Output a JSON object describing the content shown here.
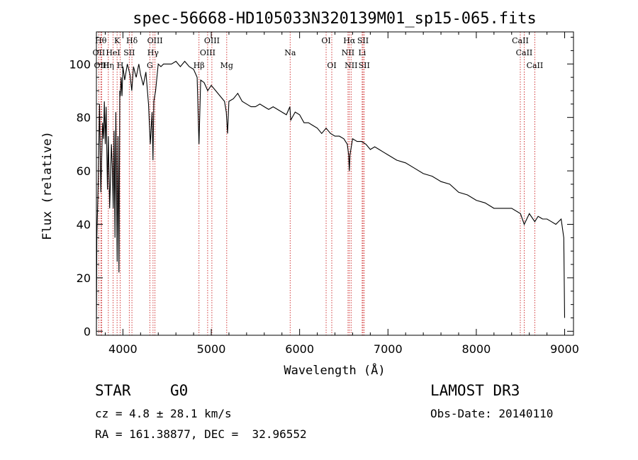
{
  "chart_data": {
    "type": "line",
    "title": "spec-56668-HD105033N320139M01_sp15-065.fits",
    "xlabel": "Wavelength (Å)",
    "ylabel": "Flux (relative)",
    "xlim": [
      3700,
      9100
    ],
    "ylim": [
      -1.5,
      112
    ],
    "x_ticks": [
      4000,
      5000,
      6000,
      7000,
      8000,
      9000
    ],
    "y_ticks": [
      0,
      20,
      40,
      60,
      80,
      100
    ],
    "grid": false,
    "series": [
      {
        "name": "flux",
        "x": [
          3700,
          3705,
          3720,
          3735,
          3750,
          3770,
          3780,
          3790,
          3800,
          3810,
          3825,
          3835,
          3850,
          3870,
          3880,
          3890,
          3900,
          3910,
          3920,
          3935,
          3945,
          3955,
          3965,
          3970,
          3980,
          3990,
          4000,
          4020,
          4050,
          4080,
          4100,
          4120,
          4150,
          4180,
          4200,
          4230,
          4260,
          4290,
          4310,
          4330,
          4340,
          4350,
          4370,
          4400,
          4430,
          4460,
          4500,
          4550,
          4600,
          4650,
          4700,
          4750,
          4800,
          4840,
          4861,
          4880,
          4920,
          4960,
          5000,
          5050,
          5100,
          5150,
          5170,
          5184,
          5200,
          5250,
          5300,
          5350,
          5400,
          5450,
          5500,
          5550,
          5600,
          5650,
          5700,
          5750,
          5800,
          5850,
          5890,
          5900,
          5950,
          6000,
          6050,
          6100,
          6150,
          6200,
          6250,
          6300,
          6350,
          6400,
          6450,
          6500,
          6540,
          6555,
          6563,
          6570,
          6600,
          6650,
          6700,
          6750,
          6800,
          6850,
          6900,
          6950,
          7000,
          7100,
          7200,
          7300,
          7400,
          7500,
          7600,
          7700,
          7800,
          7900,
          8000,
          8100,
          8200,
          8300,
          8400,
          8500,
          8542,
          8600,
          8662,
          8700,
          8750,
          8800,
          8850,
          8900,
          8960,
          8990,
          9000
        ],
        "y": [
          0,
          35,
          55,
          85,
          52,
          78,
          72,
          86,
          70,
          84,
          53,
          73,
          46,
          70,
          62,
          46,
          75,
          35,
          82,
          26,
          73,
          22,
          90,
          88,
          95,
          88,
          99,
          94,
          100,
          96,
          90,
          99,
          95,
          100,
          96,
          92,
          97,
          85,
          70,
          82,
          64,
          86,
          90,
          100,
          99,
          100,
          100,
          100,
          101,
          99,
          101,
          99,
          98,
          95,
          70,
          94,
          93,
          90,
          92,
          90,
          88,
          86,
          82,
          74,
          86,
          87,
          89,
          86,
          85,
          84,
          84,
          85,
          84,
          83,
          84,
          83,
          82,
          81,
          84,
          79,
          82,
          81,
          78,
          78,
          77,
          76,
          74,
          76,
          74,
          73,
          73,
          72,
          70,
          66,
          60,
          66,
          72,
          71,
          71,
          70,
          68,
          69,
          68,
          67,
          66,
          64,
          63,
          61,
          59,
          58,
          56,
          55,
          52,
          51,
          49,
          48,
          46,
          46,
          46,
          44,
          40,
          44,
          41,
          43,
          42,
          42,
          41,
          40,
          42,
          35,
          5
        ]
      }
    ],
    "spectral_lines": [
      {
        "label": "OII",
        "wavelength": 3727,
        "row": 2
      },
      {
        "label": "Hθ",
        "wavelength": 3750,
        "row": 1
      },
      {
        "label": "OIII",
        "wavelength": 3760,
        "row": 3
      },
      {
        "label": "Hη",
        "wavelength": 3835,
        "row": 3
      },
      {
        "label": "HeI",
        "wavelength": 3889,
        "row": 2
      },
      {
        "label": "K",
        "wavelength": 3934,
        "row": 1
      },
      {
        "label": "H",
        "wavelength": 3969,
        "row": 3
      },
      {
        "label": "SII",
        "wavelength": 4072,
        "row": 2
      },
      {
        "label": "Hδ",
        "wavelength": 4102,
        "row": 1
      },
      {
        "label": "G",
        "wavelength": 4305,
        "row": 3
      },
      {
        "label": "Hγ",
        "wavelength": 4341,
        "row": 2
      },
      {
        "label": "OIII",
        "wavelength": 4363,
        "row": 1
      },
      {
        "label": "Hβ",
        "wavelength": 4861,
        "row": 3
      },
      {
        "label": "OIII",
        "wavelength": 4959,
        "row": 2
      },
      {
        "label": "OIII",
        "wavelength": 5007,
        "row": 1
      },
      {
        "label": "Mg",
        "wavelength": 5175,
        "row": 3
      },
      {
        "label": "Na",
        "wavelength": 5893,
        "row": 2
      },
      {
        "label": "OI",
        "wavelength": 6300,
        "row": 1
      },
      {
        "label": "OI",
        "wavelength": 6364,
        "row": 3
      },
      {
        "label": "NII",
        "wavelength": 6548,
        "row": 2
      },
      {
        "label": "Hα",
        "wavelength": 6563,
        "row": 1
      },
      {
        "label": "NII",
        "wavelength": 6583,
        "row": 3
      },
      {
        "label": "SII",
        "wavelength": 6717,
        "row": 1
      },
      {
        "label": "Li",
        "wavelength": 6708,
        "row": 2
      },
      {
        "label": "SII",
        "wavelength": 6731,
        "row": 3
      },
      {
        "label": "CaII",
        "wavelength": 8498,
        "row": 1
      },
      {
        "label": "CaII",
        "wavelength": 8542,
        "row": 2
      },
      {
        "label": "CaII",
        "wavelength": 8662,
        "row": 3
      }
    ]
  },
  "info": {
    "object_class": "STAR",
    "subclass": "G0",
    "redshift": "cz = 4.8 ± 28.1 km/s",
    "coords": "RA = 161.38877, DEC =  32.96552",
    "survey": "LAMOST DR3",
    "obs_date": "Obs-Date: 20140110"
  },
  "colors": {
    "line_marker": "#cc2222",
    "spectrum": "#000000"
  }
}
